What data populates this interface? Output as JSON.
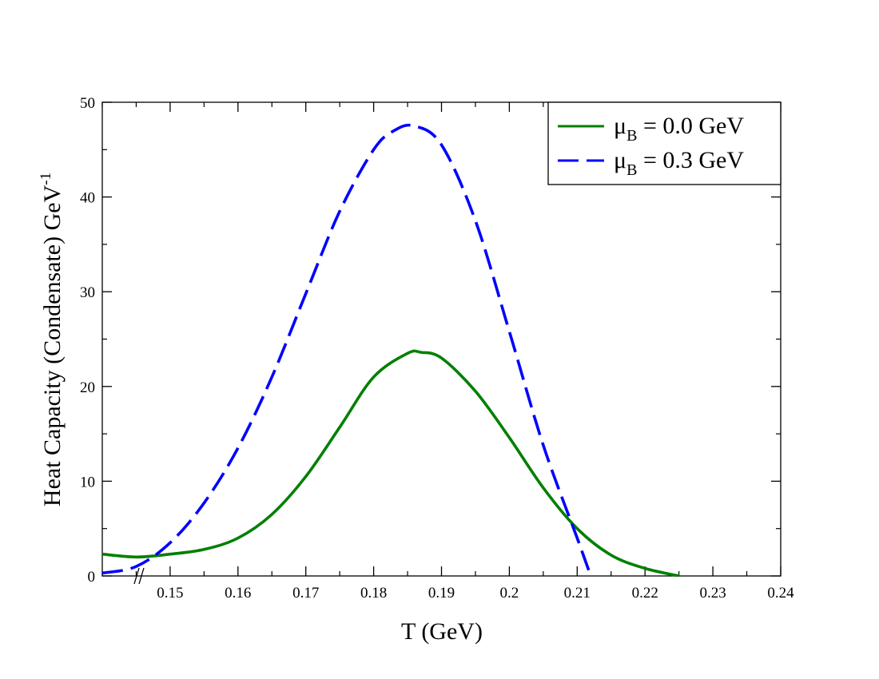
{
  "chart_data": {
    "type": "line",
    "title": "",
    "xlabel": "T (GeV)",
    "ylabel_main": "Heat Capacity (Condensate) GeV",
    "ylabel_sup": "-1",
    "xlim": [
      0.14,
      0.24
    ],
    "ylim": [
      0,
      50
    ],
    "x_ticks": [
      {
        "value": 0.15,
        "label": "0.15"
      },
      {
        "value": 0.16,
        "label": "0.16"
      },
      {
        "value": 0.17,
        "label": "0.17"
      },
      {
        "value": 0.18,
        "label": "0.18"
      },
      {
        "value": 0.19,
        "label": "0.19"
      },
      {
        "value": 0.2,
        "label": "0.2"
      },
      {
        "value": 0.21,
        "label": "0.21"
      },
      {
        "value": 0.22,
        "label": "0.22"
      },
      {
        "value": 0.23,
        "label": "0.23"
      },
      {
        "value": 0.24,
        "label": "0.24"
      }
    ],
    "y_ticks": [
      {
        "value": 0,
        "label": "0"
      },
      {
        "value": 10,
        "label": "10"
      },
      {
        "value": 20,
        "label": "20"
      },
      {
        "value": 30,
        "label": "30"
      },
      {
        "value": 40,
        "label": "40"
      },
      {
        "value": 50,
        "label": "50"
      }
    ],
    "x_minor_step": 0.005,
    "y_minor_step": 5,
    "axis_break_marker": "//",
    "legend_position": "top-right",
    "series": [
      {
        "name": "μ_B = 0.0 GeV",
        "legend_mu": "μ",
        "legend_sub": "B",
        "legend_rest": " = 0.0 GeV",
        "color": "#008000",
        "style": "solid",
        "x": [
          0.14,
          0.145,
          0.15,
          0.155,
          0.16,
          0.165,
          0.17,
          0.175,
          0.18,
          0.185,
          0.187,
          0.19,
          0.195,
          0.2,
          0.205,
          0.21,
          0.215,
          0.22,
          0.225
        ],
        "y": [
          2.3,
          2.0,
          2.3,
          2.8,
          4.0,
          6.5,
          10.5,
          15.7,
          21.0,
          23.5,
          23.6,
          23.0,
          19.5,
          14.6,
          9.3,
          5.0,
          2.2,
          0.8,
          0.0
        ]
      },
      {
        "name": "μ_B = 0.3 GeV",
        "legend_mu": "μ",
        "legend_sub": "B",
        "legend_rest": " = 0.3 GeV",
        "color": "#0000ff",
        "style": "dashed",
        "x": [
          0.14,
          0.145,
          0.15,
          0.155,
          0.16,
          0.165,
          0.17,
          0.175,
          0.18,
          0.183,
          0.186,
          0.19,
          0.195,
          0.2,
          0.205,
          0.21,
          0.212
        ],
        "y": [
          0.3,
          1.0,
          3.5,
          7.7,
          13.5,
          21.0,
          29.8,
          38.5,
          45.0,
          47.0,
          47.5,
          45.5,
          37.5,
          25.8,
          13.8,
          4.0,
          0.0
        ]
      }
    ]
  }
}
